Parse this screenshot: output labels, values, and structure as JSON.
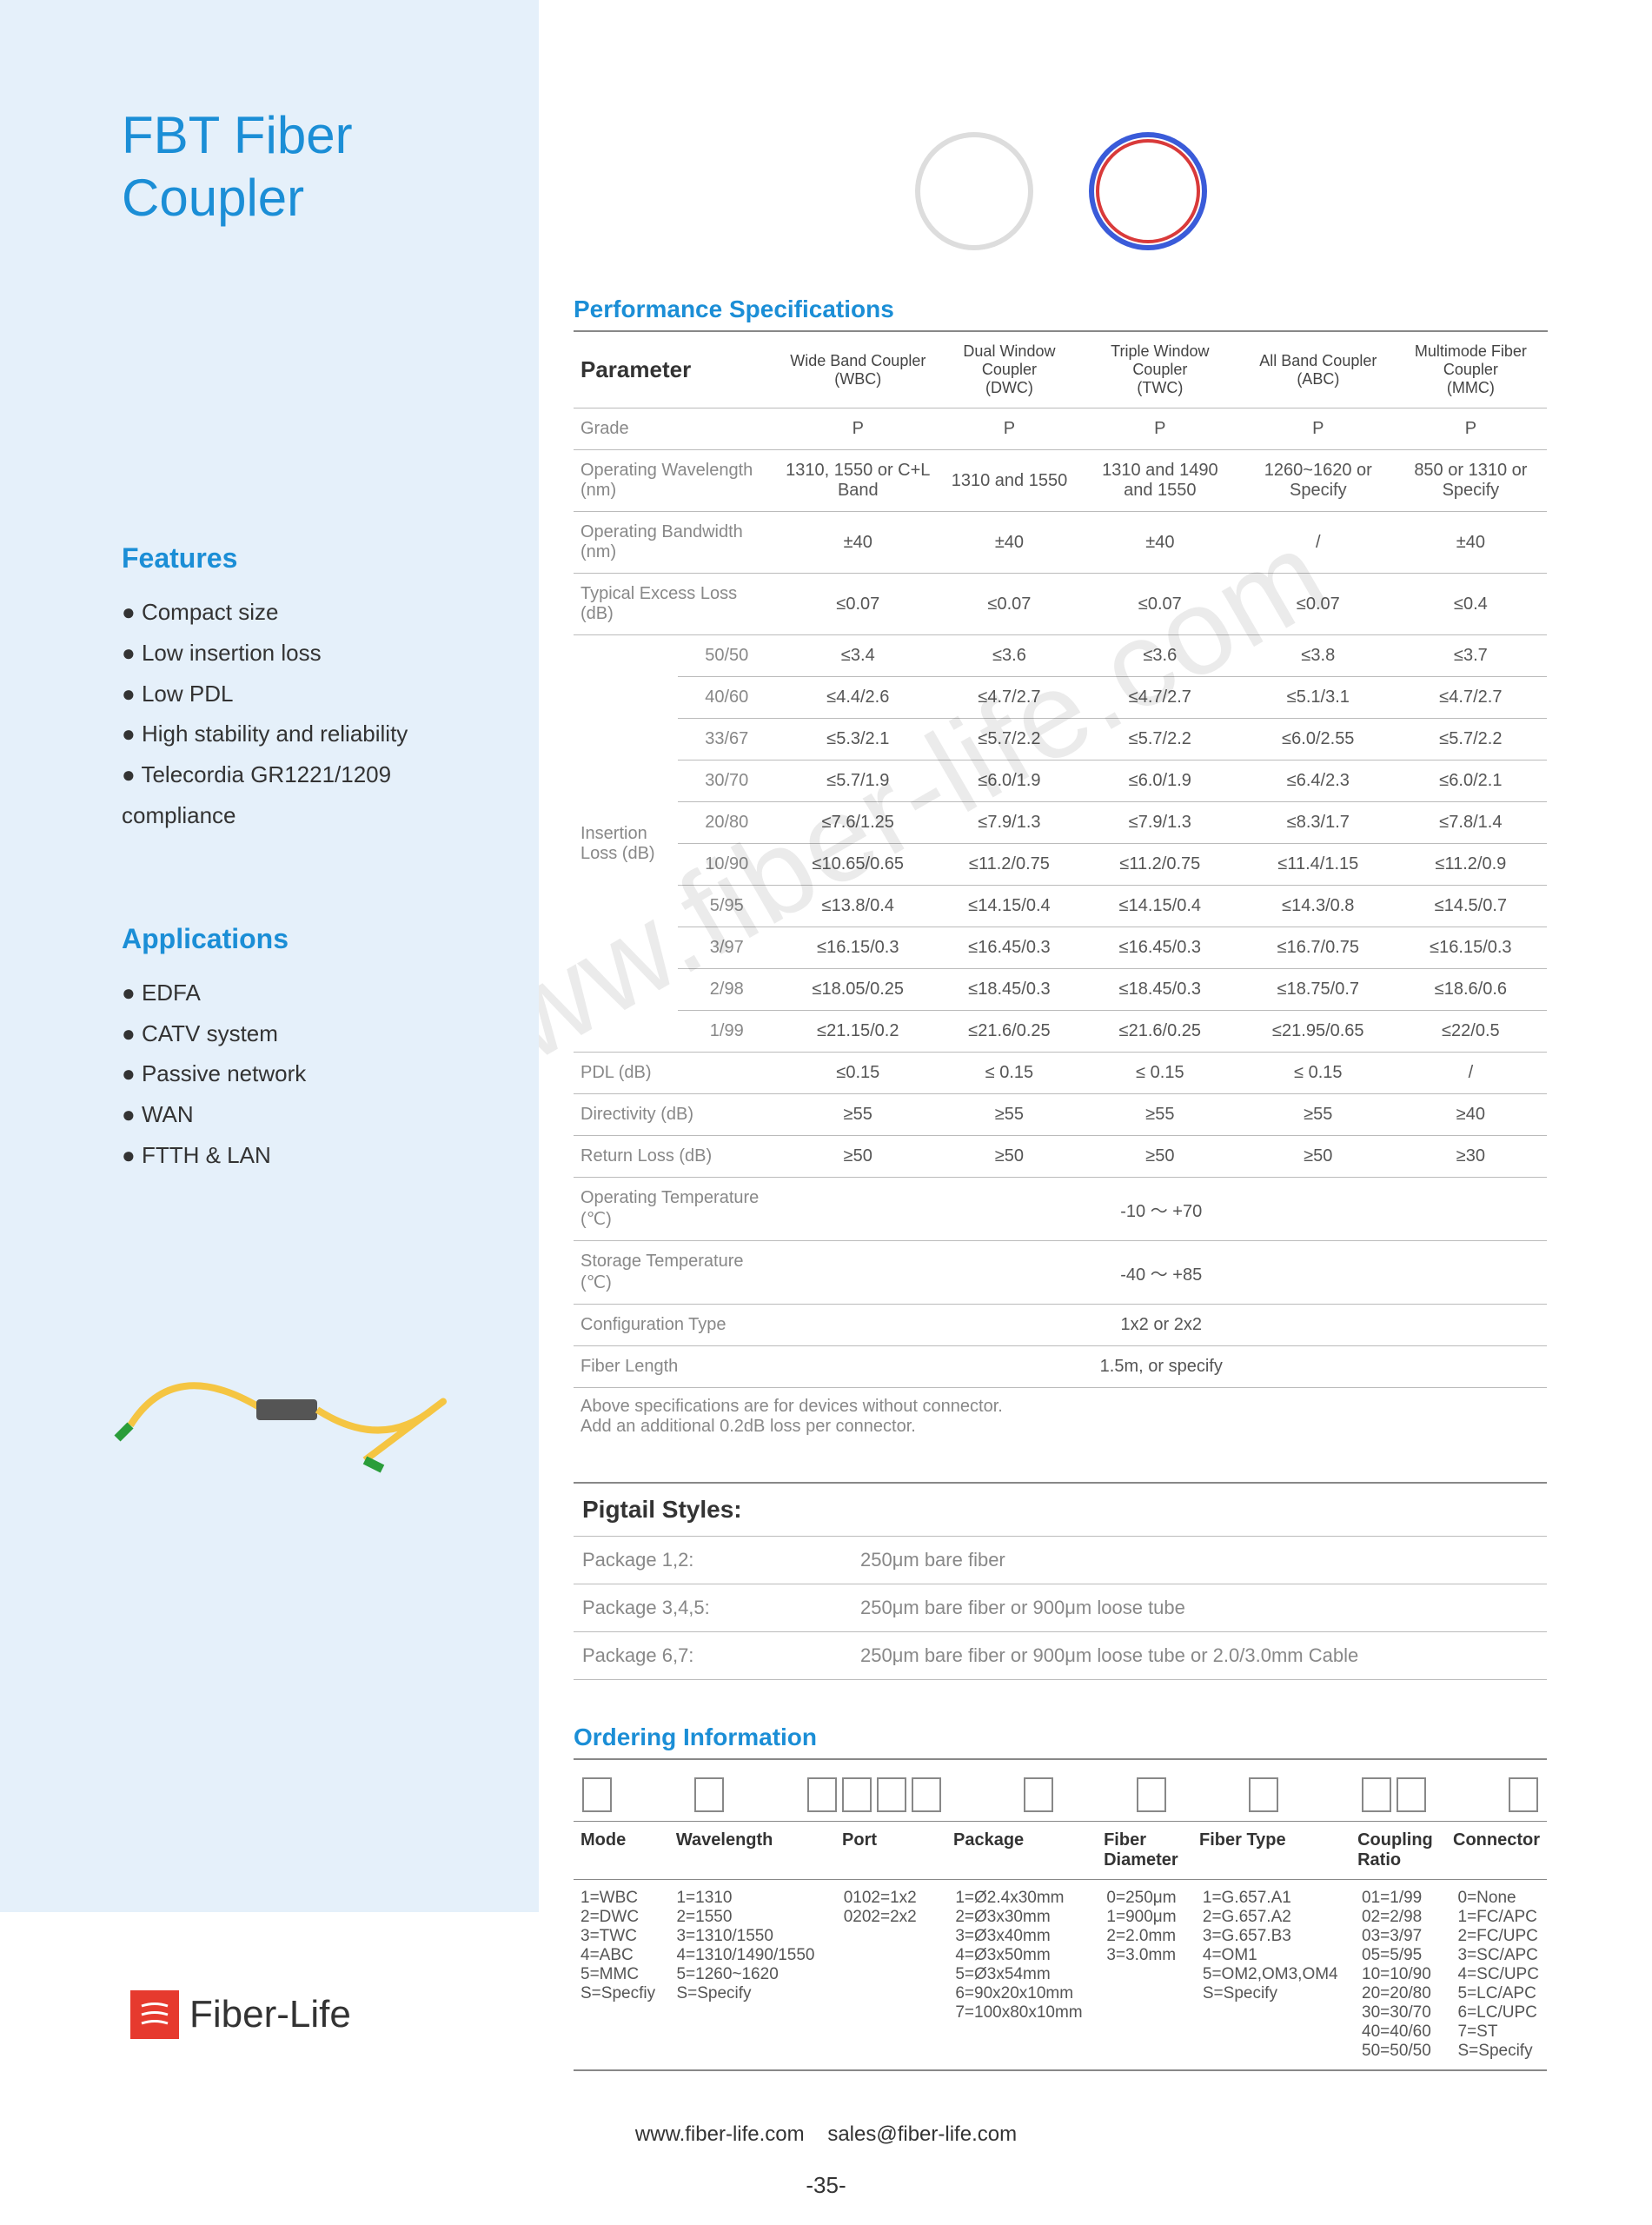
{
  "title": "FBT Fiber Coupler",
  "features_h": "Features",
  "features": [
    "Compact size",
    "Low insertion loss",
    "Low PDL",
    "High stability and reliability",
    "Telecordia GR1221/1209 compliance"
  ],
  "apps_h": "Applications",
  "apps": [
    "EDFA",
    "CATV system",
    "Passive network",
    "WAN",
    "FTTH & LAN"
  ],
  "perf_h": "Performance Specifications",
  "cols": [
    {
      "t": "Wide Band Coupler",
      "s": "(WBC)"
    },
    {
      "t": "Dual Window Coupler",
      "s": "(DWC)"
    },
    {
      "t": "Triple Window Coupler",
      "s": "(TWC)"
    },
    {
      "t": "All Band Coupler",
      "s": "(ABC)"
    },
    {
      "t": "Multimode Fiber Coupler",
      "s": "(MMC)"
    }
  ],
  "param_lbl": "Parameter",
  "grade": {
    "k": "Grade",
    "v": [
      "P",
      "P",
      "P",
      "P",
      "P"
    ]
  },
  "opwl": {
    "k": "Operating Wavelength (nm)",
    "v": [
      "1310, 1550 or C+L Band",
      "1310 and 1550",
      "1310 and 1490 and 1550",
      "1260~1620 or Specify",
      "850 or 1310 or Specify"
    ]
  },
  "opbw": {
    "k": "Operating Bandwidth (nm)",
    "v": [
      "±40",
      "±40",
      "±40",
      "/",
      "±40"
    ]
  },
  "tel": {
    "k": "Typical Excess Loss  (dB)",
    "v": [
      "≤0.07",
      "≤0.07",
      "≤0.07",
      "≤0.07",
      "≤0.4"
    ]
  },
  "il_label": "Insertion Loss (dB)",
  "il": [
    {
      "r": "50/50",
      "v": [
        "≤3.4",
        "≤3.6",
        "≤3.6",
        "≤3.8",
        "≤3.7"
      ]
    },
    {
      "r": "40/60",
      "v": [
        "≤4.4/2.6",
        "≤4.7/2.7",
        "≤4.7/2.7",
        "≤5.1/3.1",
        "≤4.7/2.7"
      ]
    },
    {
      "r": "33/67",
      "v": [
        "≤5.3/2.1",
        "≤5.7/2.2",
        "≤5.7/2.2",
        "≤6.0/2.55",
        "≤5.7/2.2"
      ]
    },
    {
      "r": "30/70",
      "v": [
        "≤5.7/1.9",
        "≤6.0/1.9",
        "≤6.0/1.9",
        "≤6.4/2.3",
        "≤6.0/2.1"
      ]
    },
    {
      "r": "20/80",
      "v": [
        "≤7.6/1.25",
        "≤7.9/1.3",
        "≤7.9/1.3",
        "≤8.3/1.7",
        "≤7.8/1.4"
      ]
    },
    {
      "r": "10/90",
      "v": [
        "≤10.65/0.65",
        "≤11.2/0.75",
        "≤11.2/0.75",
        "≤11.4/1.15",
        "≤11.2/0.9"
      ]
    },
    {
      "r": "5/95",
      "v": [
        "≤13.8/0.4",
        "≤14.15/0.4",
        "≤14.15/0.4",
        "≤14.3/0.8",
        "≤14.5/0.7"
      ]
    },
    {
      "r": "3/97",
      "v": [
        "≤16.15/0.3",
        "≤16.45/0.3",
        "≤16.45/0.3",
        "≤16.7/0.75",
        "≤16.15/0.3"
      ]
    },
    {
      "r": "2/98",
      "v": [
        "≤18.05/0.25",
        "≤18.45/0.3",
        "≤18.45/0.3",
        "≤18.75/0.7",
        "≤18.6/0.6"
      ]
    },
    {
      "r": "1/99",
      "v": [
        "≤21.15/0.2",
        "≤21.6/0.25",
        "≤21.6/0.25",
        "≤21.95/0.65",
        "≤22/0.5"
      ]
    }
  ],
  "pdl": {
    "k": "PDL (dB)",
    "v": [
      "≤0.15",
      "≤ 0.15",
      "≤ 0.15",
      "≤ 0.15",
      "/"
    ]
  },
  "dir": {
    "k": "Directivity (dB)",
    "v": [
      "≥55",
      "≥55",
      "≥55",
      "≥55",
      "≥40"
    ]
  },
  "rl": {
    "k": "Return Loss (dB)",
    "v": [
      "≥50",
      "≥50",
      "≥50",
      "≥50",
      "≥30"
    ]
  },
  "optemp": {
    "k": "Operating Temperature (℃)",
    "v": "-10 ～ +70"
  },
  "sttemp": {
    "k": "Storage Temperature (℃)",
    "v": "-40 ～ +85"
  },
  "cfg": {
    "k": "Configuration Type",
    "v": "1x2 or 2x2"
  },
  "flen": {
    "k": "Fiber Length",
    "v": "1.5m, or specify"
  },
  "note1": "Above specifications are for devices without connector.",
  "note2": "Add an additional 0.2dB loss per connector.",
  "pig_h": "Pigtail Styles:",
  "pig": [
    {
      "k": "Package 1,2:",
      "v": "250μm bare fiber"
    },
    {
      "k": "Package 3,4,5:",
      "v": "250μm bare fiber or 900μm loose tube"
    },
    {
      "k": "Package 6,7:",
      "v": "250μm bare fiber or 900μm loose tube or 2.0/3.0mm Cable"
    }
  ],
  "ord_h": "Ordering Information",
  "ord_cols": [
    "Mode",
    "Wavelength",
    "Port",
    "Package",
    "Fiber Diameter",
    "Fiber Type",
    "Coupling Ratio",
    "Connector"
  ],
  "ord_boxes": [
    1,
    1,
    4,
    1,
    1,
    1,
    2,
    1
  ],
  "ord": {
    "mode": "1=WBC\n2=DWC\n3=TWC\n4=ABC\n5=MMC\nS=Specfiy",
    "wl": "1=1310\n2=1550\n3=1310/1550\n4=1310/1490/1550\n5=1260~1620\nS=Specify",
    "port": "0102=1x2\n0202=2x2",
    "pkg": "1=Ø2.4x30mm\n2=Ø3x30mm\n3=Ø3x40mm\n4=Ø3x50mm\n5=Ø3x54mm\n6=90x20x10mm\n7=100x80x10mm",
    "fd": "0=250μm\n1=900μm\n2=2.0mm\n3=3.0mm",
    "ft": "1=G.657.A1\n2=G.657.A2\n3=G.657.B3\n4=OM1\n5=OM2,OM3,OM4\nS=Specify",
    "cr": "01=1/99\n02=2/98\n03=3/97\n05=5/95\n10=10/90\n20=20/80\n30=30/70\n40=40/60\n50=50/50",
    "conn": "0=None\n1=FC/APC\n2=FC/UPC\n3=SC/APC\n4=SC/UPC\n5=LC/APC\n6=LC/UPC\n7=ST\nS=Specify"
  },
  "logo": "Fiber-Life",
  "footer_url": "www.fiber-life.com",
  "footer_email": "sales@fiber-life.com",
  "page": "-35-",
  "watermark": "www.fiber-life.com",
  "colors": {
    "accent": "#1b8ed6",
    "sidebar": "#e5f0fa",
    "border": "#bbbbbb"
  }
}
